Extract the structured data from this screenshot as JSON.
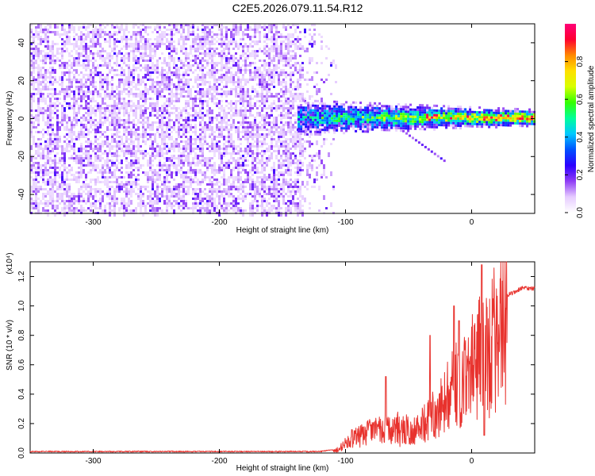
{
  "title": "C2E5.2026.079.11.54.R12",
  "colors": {
    "snr_line": "#e8322d",
    "spectrogram_background": "#ffffff"
  },
  "chart_data": [
    {
      "type": "heatmap",
      "name": "spectrogram",
      "xlabel": "Height of straight line (km)",
      "ylabel": "Frequency (Hz)",
      "xlim": [
        -350,
        50
      ],
      "ylim": [
        -50,
        50
      ],
      "xticks": [
        -300,
        -200,
        -100,
        0
      ],
      "xtick_labels": [
        "-300",
        "-200",
        "-100",
        "0"
      ],
      "yticks": [
        -40,
        -20,
        0,
        20,
        40
      ],
      "ytick_labels": [
        "-40",
        "-20",
        "0",
        "20",
        "40"
      ],
      "noise_region_x": [
        -350,
        -135
      ],
      "signal_onset_km": -138,
      "signal_center_hz": 1,
      "signal_halfwidth_hz": {
        "at_-130_km": 8,
        "at_0_km": 3
      },
      "peak_amplitude": 1.0,
      "colorbar": {
        "label": "Normalized spectral amplitude",
        "range": [
          0,
          1
        ],
        "ticks": [
          0.0,
          0.2,
          0.4,
          0.6,
          0.8
        ],
        "tick_labels": [
          "0.0",
          "0.2",
          "0.4",
          "0.6",
          "0.8"
        ],
        "colormap": [
          "#ffffff",
          "#e6ccff",
          "#8f3cf5",
          "#2b00ff",
          "#0050ff",
          "#00c8ff",
          "#00ff9a",
          "#32ff00",
          "#d8ff00",
          "#ffe000",
          "#ff8a00",
          "#ff0030",
          "#ff0078"
        ]
      }
    },
    {
      "type": "line",
      "name": "snr",
      "xlabel": "Height of straight line (km)",
      "ylabel": "SNR (10 * v/v)",
      "scale_label": "(x10⁴)",
      "xlim": [
        -350,
        50
      ],
      "ylim": [
        0,
        1.3
      ],
      "xticks": [
        -300,
        -200,
        -100,
        0
      ],
      "xtick_labels": [
        "-300",
        "-200",
        "-100",
        "0"
      ],
      "yticks": [
        0.0,
        0.2,
        0.4,
        0.6,
        0.8,
        1.0,
        1.2
      ],
      "ytick_labels": [
        "0.0",
        "0.2",
        "0.4",
        "0.6",
        "0.8",
        "1.0",
        "1.2"
      ],
      "envelope": {
        "x": [
          -350,
          -120,
          -105,
          -95,
          -80,
          -60,
          -45,
          -30,
          -20,
          -10,
          0,
          10,
          20,
          30,
          40,
          50
        ],
        "y": [
          0.01,
          0.01,
          0.03,
          0.12,
          0.18,
          0.2,
          0.2,
          0.32,
          0.45,
          0.6,
          0.78,
          0.9,
          1.02,
          1.08,
          1.12,
          1.12
        ]
      },
      "spikes": [
        {
          "x": -68,
          "y": 0.52
        },
        {
          "x": -33,
          "y": 0.8
        },
        {
          "x": -14,
          "y": 1.0
        },
        {
          "x": -10,
          "y": 0.9
        },
        {
          "x": 8,
          "y": 1.28
        },
        {
          "x": 10,
          "y": 0.12
        }
      ]
    }
  ]
}
